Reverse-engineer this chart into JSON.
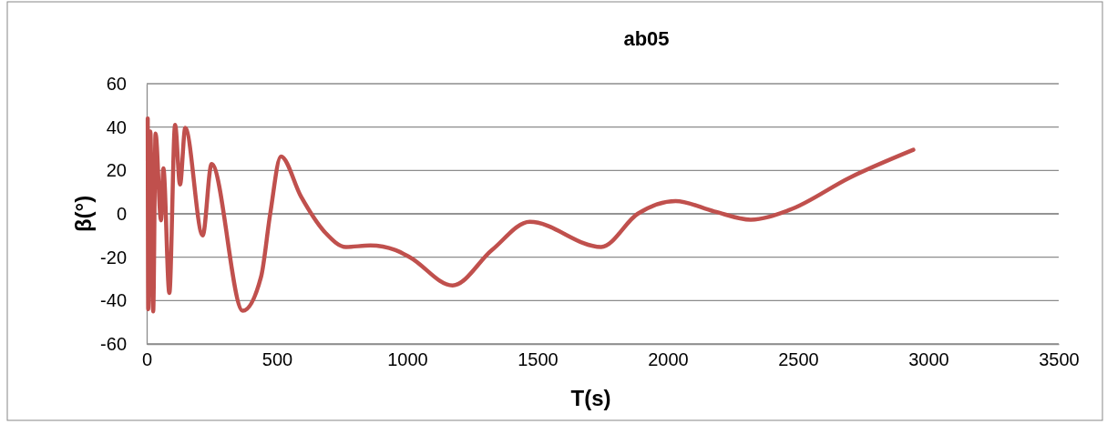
{
  "chart_data": {
    "type": "line",
    "title": "ab05",
    "xlabel": "T(s)",
    "ylabel": "β(°)",
    "xlim": [
      0,
      3500
    ],
    "xticks": [
      0,
      500,
      1000,
      1500,
      2000,
      2500,
      3000,
      3500
    ],
    "ylim": [
      -60,
      60
    ],
    "yticks": [
      -60,
      -40,
      -20,
      0,
      20,
      40,
      60
    ],
    "grid": "y",
    "marker": "none",
    "line_style": "solid",
    "series": [
      {
        "color": "#c0504d",
        "x": [
          4,
          6,
          14,
          25,
          34,
          55,
          64,
          87,
          109,
          128,
          148,
          215,
          249,
          369,
          439,
          474,
          515,
          592,
          684,
          765,
          858,
          955,
          1010,
          1174,
          1325,
          1470,
          1744,
          1884,
          2030,
          2178,
          2318,
          2467,
          2700,
          2942
        ],
        "values": [
          44,
          -44,
          38,
          -45,
          37,
          -3,
          21,
          -36.5,
          41,
          13.5,
          39.6,
          -10,
          23,
          -44.7,
          -29,
          0,
          26.4,
          8,
          -8.5,
          -15.3,
          -14.6,
          -16.7,
          -20,
          -33,
          -16.7,
          -3.7,
          -15.3,
          0,
          5.9,
          1.1,
          -2.7,
          1.8,
          16.8,
          29.5
        ]
      }
    ]
  }
}
